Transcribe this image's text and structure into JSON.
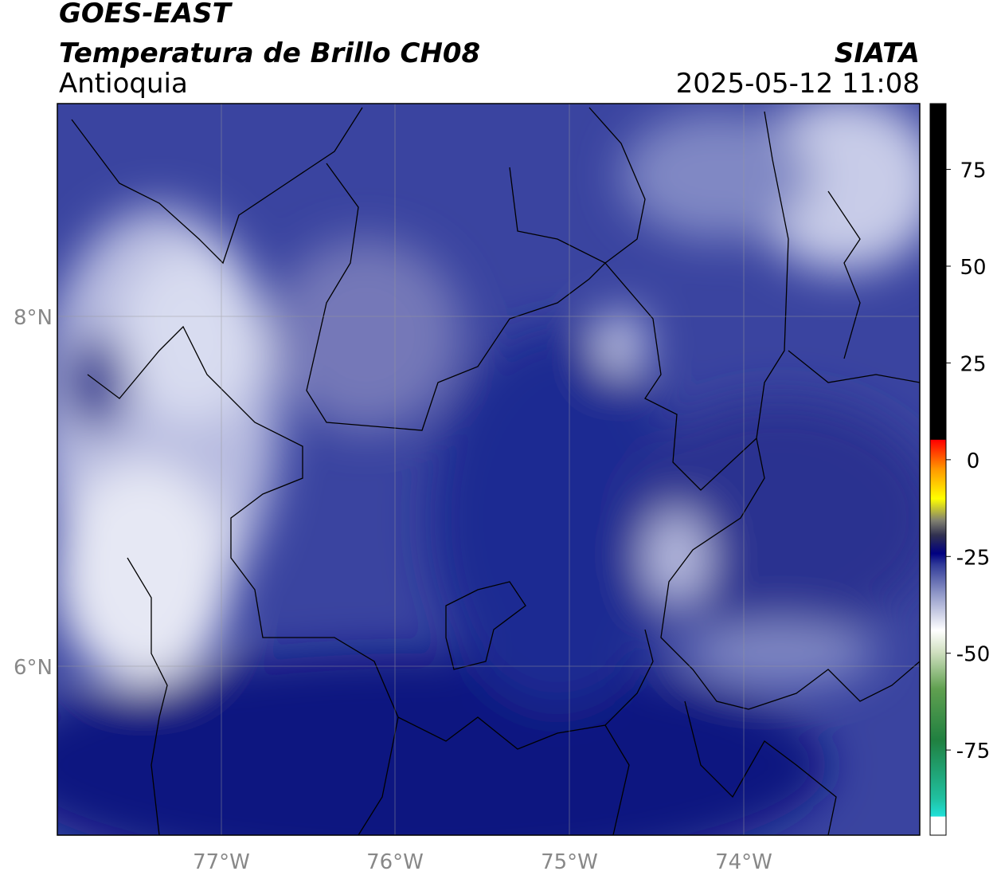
{
  "header": {
    "title": "GOES-EAST",
    "subtitle": "Temperatura de Brillo CH08",
    "region": "Antioquia",
    "source": "SIATA",
    "timestamp": "2025-05-12 11:08"
  },
  "map": {
    "lat_labels": [
      "8°N",
      "6°N"
    ],
    "lon_labels": [
      "77°W",
      "76°W",
      "75°W",
      "74°W"
    ]
  },
  "colorbar": {
    "range": [
      -97,
      92
    ],
    "ticks": [
      75,
      50,
      25,
      0,
      -25,
      -50,
      -75
    ]
  }
}
